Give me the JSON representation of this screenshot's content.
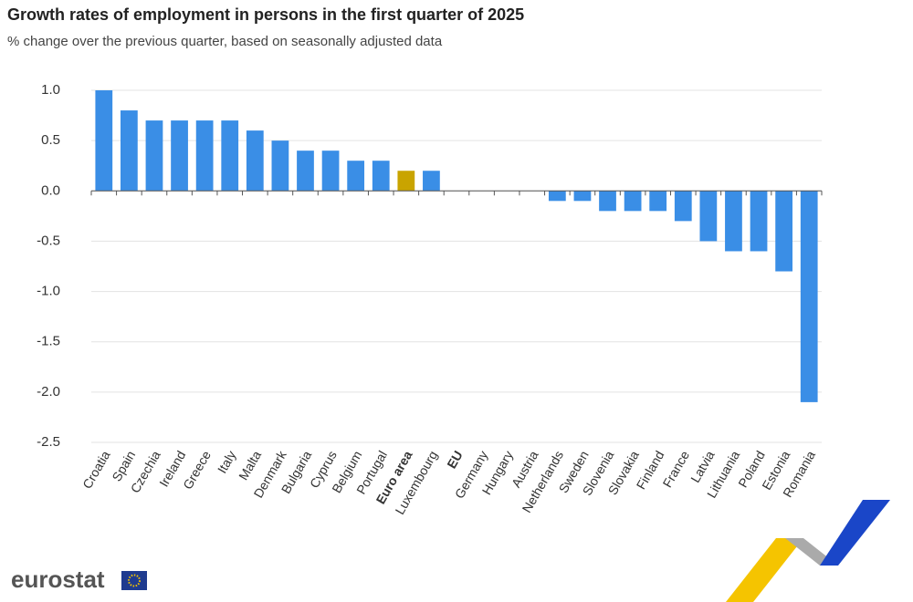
{
  "chart_data": {
    "type": "bar",
    "title": "Growth rates of employment in persons in the first quarter of 2025",
    "subtitle": "% change over the previous quarter, based on seasonally adjusted data",
    "categories": [
      "Croatia",
      "Spain",
      "Czechia",
      "Ireland",
      "Greece",
      "Italy",
      "Malta",
      "Denmark",
      "Bulgaria",
      "Cyprus",
      "Belgium",
      "Portugal",
      "Euro area",
      "Luxembourg",
      "EU",
      "Germany",
      "Hungary",
      "Austria",
      "Netherlands",
      "Sweden",
      "Slovenia",
      "Slovakia",
      "Finland",
      "France",
      "Latvia",
      "Lithuania",
      "Poland",
      "Estonia",
      "Romania"
    ],
    "values": [
      1.0,
      0.8,
      0.7,
      0.7,
      0.7,
      0.7,
      0.6,
      0.5,
      0.4,
      0.4,
      0.3,
      0.3,
      0.2,
      0.2,
      0,
      0,
      0,
      0,
      -0.1,
      -0.1,
      -0.2,
      -0.2,
      -0.2,
      -0.3,
      -0.5,
      -0.6,
      -0.6,
      -0.8,
      -2.1
    ],
    "color": "#3a8ee6",
    "highlight_color": "#c9a400",
    "highlight_categories": [
      12
    ],
    "bold_categories": [
      12,
      14
    ],
    "ylim": [
      -2.5,
      1.0
    ],
    "yticks": [
      {
        "value": 1.0,
        "label": "1.0"
      },
      {
        "value": 0.5,
        "label": "0.5"
      },
      {
        "value": 0,
        "label": "0.0"
      },
      {
        "value": -0.5,
        "label": "-0.5"
      },
      {
        "value": -1.0,
        "label": "-1.0"
      },
      {
        "value": -1.5,
        "label": "-1.5"
      },
      {
        "value": -2.0,
        "label": "-2.0"
      },
      {
        "value": -2.5,
        "label": "-2.5"
      }
    ],
    "grid": true,
    "logo": "eurostat"
  }
}
